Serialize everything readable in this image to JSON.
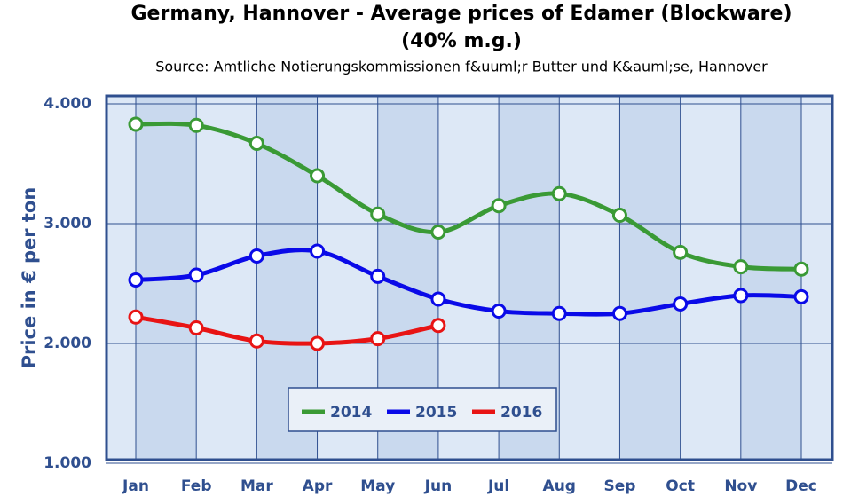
{
  "chart_data": {
    "type": "line",
    "title": [
      "Germany, Hannover - Average prices of Edamer (Blockware)",
      "(40% m.g.)"
    ],
    "subtitle": "Source: Amtliche Notierungskommissionen f&uuml;r Butter und K&auml;se, Hannover",
    "y_label": "Price in € per ton",
    "categories": [
      "Jan",
      "Feb",
      "Mar",
      "Apr",
      "May",
      "Jun",
      "Jul",
      "Aug",
      "Sep",
      "Oct",
      "Nov",
      "Dec"
    ],
    "series": [
      {
        "name": "2014",
        "color": "#3a9a35",
        "values": [
          3830,
          3820,
          3670,
          3400,
          3080,
          2930,
          3150,
          3250,
          3070,
          2760,
          2640,
          2620
        ]
      },
      {
        "name": "2015",
        "color": "#0a0ae8",
        "values": [
          2530,
          2570,
          2730,
          2770,
          2560,
          2370,
          2270,
          2250,
          2250,
          2330,
          2400,
          2390
        ]
      },
      {
        "name": "2016",
        "color": "#e81414",
        "values": [
          2220,
          2130,
          2020,
          2000,
          2040,
          2150,
          null,
          null,
          null,
          null,
          null,
          null
        ]
      }
    ],
    "ylim": [
      1000,
      4000
    ],
    "yticks": [
      {
        "value": 1000,
        "label": "1.000"
      },
      {
        "value": 2000,
        "label": "2.000"
      },
      {
        "value": 3000,
        "label": "3.000"
      },
      {
        "value": 4000,
        "label": "4.000"
      }
    ],
    "grid": true
  }
}
